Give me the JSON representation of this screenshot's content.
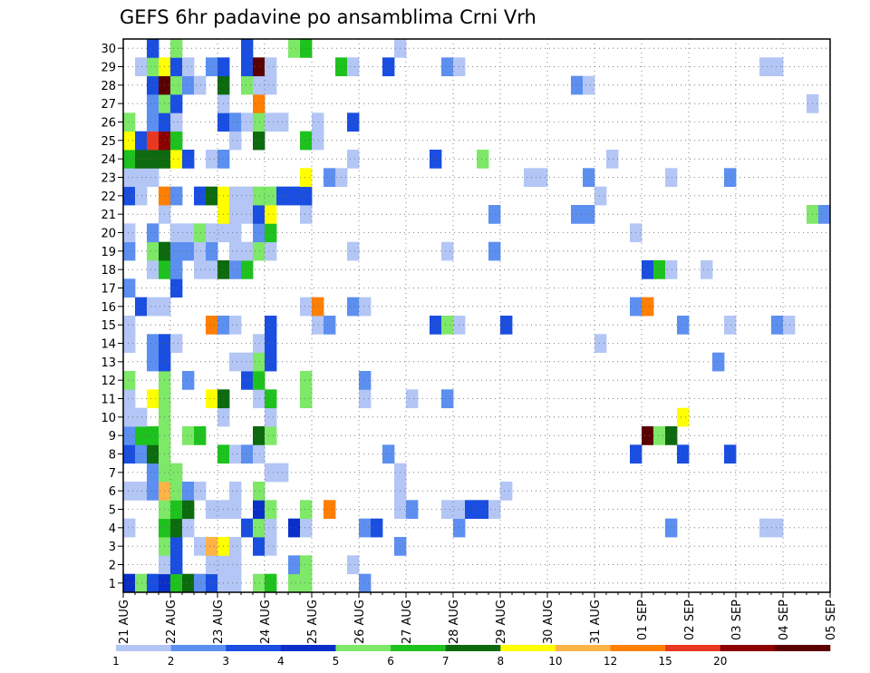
{
  "chart_data": {
    "type": "heatmap",
    "title": "GEFS 6hr padavine po ansamblima Crni Vrh",
    "xlabel": "",
    "ylabel": "",
    "y_ticks": [
      "1",
      "2",
      "3",
      "4",
      "5",
      "6",
      "7",
      "8",
      "9",
      "10",
      "11",
      "12",
      "13",
      "14",
      "15",
      "16",
      "17",
      "18",
      "19",
      "20",
      "21",
      "22",
      "23",
      "24",
      "25",
      "26",
      "27",
      "28",
      "29",
      "30"
    ],
    "x_ticks": [
      "21 AUG",
      "22 AUG",
      "23 AUG",
      "24 AUG",
      "25 AUG",
      "26 AUG",
      "27 AUG",
      "28 AUG",
      "29 AUG",
      "30 AUG",
      "31 AUG",
      "01 SEP",
      "02 SEP",
      "03 SEP",
      "04 SEP",
      "05 SEP"
    ],
    "x_range_steps": 60,
    "y_range": [
      0.5,
      30.5
    ],
    "grid": true,
    "legend_placement": "bottom",
    "legend_labels": [
      "1",
      "2",
      "3",
      "4",
      "5",
      "6",
      "7",
      "8",
      "10",
      "12",
      "15",
      "20"
    ],
    "legend_colors": [
      "#b3c6f5",
      "#5c8ff0",
      "#1a4ee0",
      "#0a2fc8",
      "#7ee868",
      "#1ec21e",
      "#0e6a0e",
      "#ffff00",
      "#ffb347",
      "#ff7f00",
      "#e83820",
      "#8b0000",
      "#5a0000"
    ],
    "cells": [
      [
        1,
        0,
        4
      ],
      [
        1,
        1,
        5
      ],
      [
        1,
        2,
        3
      ],
      [
        1,
        3,
        4
      ],
      [
        1,
        4,
        6
      ],
      [
        1,
        5,
        7
      ],
      [
        1,
        6,
        2
      ],
      [
        1,
        7,
        3
      ],
      [
        1,
        8,
        1
      ],
      [
        1,
        9,
        1
      ],
      [
        1,
        11,
        5
      ],
      [
        1,
        12,
        6
      ],
      [
        1,
        14,
        5
      ],
      [
        1,
        15,
        5
      ],
      [
        1,
        20,
        2
      ],
      [
        2,
        3,
        1
      ],
      [
        2,
        4,
        3
      ],
      [
        2,
        7,
        1
      ],
      [
        2,
        8,
        1
      ],
      [
        2,
        9,
        1
      ],
      [
        2,
        14,
        2
      ],
      [
        2,
        15,
        5
      ],
      [
        2,
        19,
        1
      ],
      [
        3,
        3,
        5
      ],
      [
        3,
        4,
        3
      ],
      [
        3,
        6,
        1
      ],
      [
        3,
        7,
        9
      ],
      [
        3,
        8,
        8
      ],
      [
        3,
        9,
        1
      ],
      [
        3,
        11,
        3
      ],
      [
        3,
        12,
        1
      ],
      [
        3,
        23,
        2
      ],
      [
        4,
        0,
        1
      ],
      [
        4,
        3,
        6
      ],
      [
        4,
        4,
        7
      ],
      [
        4,
        5,
        1
      ],
      [
        4,
        10,
        3
      ],
      [
        4,
        11,
        5
      ],
      [
        4,
        12,
        1
      ],
      [
        4,
        14,
        4
      ],
      [
        4,
        15,
        1
      ],
      [
        4,
        20,
        2
      ],
      [
        4,
        21,
        3
      ],
      [
        4,
        28,
        2
      ],
      [
        4,
        46,
        2
      ],
      [
        4,
        54,
        1
      ],
      [
        4,
        55,
        1
      ],
      [
        5,
        3,
        5
      ],
      [
        5,
        4,
        6
      ],
      [
        5,
        5,
        7
      ],
      [
        5,
        7,
        1
      ],
      [
        5,
        8,
        1
      ],
      [
        5,
        9,
        1
      ],
      [
        5,
        11,
        4
      ],
      [
        5,
        12,
        5
      ],
      [
        5,
        15,
        5
      ],
      [
        5,
        17,
        10
      ],
      [
        5,
        23,
        1
      ],
      [
        5,
        24,
        2
      ],
      [
        5,
        27,
        1
      ],
      [
        5,
        28,
        1
      ],
      [
        5,
        29,
        3
      ],
      [
        5,
        30,
        3
      ],
      [
        5,
        31,
        1
      ],
      [
        6,
        0,
        1
      ],
      [
        6,
        1,
        1
      ],
      [
        6,
        2,
        2
      ],
      [
        6,
        3,
        9
      ],
      [
        6,
        4,
        5
      ],
      [
        6,
        5,
        2
      ],
      [
        6,
        6,
        1
      ],
      [
        6,
        9,
        1
      ],
      [
        6,
        11,
        5
      ],
      [
        6,
        23,
        1
      ],
      [
        6,
        32,
        1
      ],
      [
        7,
        2,
        2
      ],
      [
        7,
        3,
        5
      ],
      [
        7,
        4,
        5
      ],
      [
        7,
        12,
        1
      ],
      [
        7,
        13,
        1
      ],
      [
        7,
        23,
        1
      ],
      [
        8,
        0,
        3
      ],
      [
        8,
        1,
        2
      ],
      [
        8,
        2,
        7
      ],
      [
        8,
        3,
        5
      ],
      [
        8,
        8,
        6
      ],
      [
        8,
        9,
        1
      ],
      [
        8,
        10,
        2
      ],
      [
        8,
        11,
        1
      ],
      [
        8,
        22,
        2
      ],
      [
        8,
        43,
        3
      ],
      [
        8,
        47,
        3
      ],
      [
        8,
        51,
        3
      ],
      [
        9,
        0,
        2
      ],
      [
        9,
        1,
        6
      ],
      [
        9,
        2,
        6
      ],
      [
        9,
        3,
        5
      ],
      [
        9,
        5,
        5
      ],
      [
        9,
        6,
        6
      ],
      [
        9,
        11,
        7
      ],
      [
        9,
        12,
        5
      ],
      [
        9,
        44,
        13
      ],
      [
        9,
        45,
        5
      ],
      [
        9,
        46,
        7
      ],
      [
        10,
        0,
        1
      ],
      [
        10,
        1,
        1
      ],
      [
        10,
        3,
        5
      ],
      [
        10,
        8,
        1
      ],
      [
        10,
        12,
        1
      ],
      [
        10,
        47,
        8
      ],
      [
        11,
        0,
        1
      ],
      [
        11,
        2,
        8
      ],
      [
        11,
        3,
        5
      ],
      [
        11,
        7,
        8
      ],
      [
        11,
        8,
        7
      ],
      [
        11,
        11,
        1
      ],
      [
        11,
        12,
        6
      ],
      [
        11,
        15,
        5
      ],
      [
        11,
        20,
        1
      ],
      [
        11,
        24,
        1
      ],
      [
        11,
        27,
        2
      ],
      [
        12,
        0,
        5
      ],
      [
        12,
        3,
        5
      ],
      [
        12,
        5,
        2
      ],
      [
        12,
        10,
        3
      ],
      [
        12,
        11,
        6
      ],
      [
        12,
        15,
        5
      ],
      [
        12,
        20,
        2
      ],
      [
        13,
        2,
        2
      ],
      [
        13,
        3,
        3
      ],
      [
        13,
        9,
        1
      ],
      [
        13,
        10,
        1
      ],
      [
        13,
        11,
        5
      ],
      [
        13,
        12,
        3
      ],
      [
        13,
        50,
        2
      ],
      [
        14,
        0,
        1
      ],
      [
        14,
        2,
        2
      ],
      [
        14,
        3,
        3
      ],
      [
        14,
        4,
        1
      ],
      [
        14,
        11,
        1
      ],
      [
        14,
        12,
        3
      ],
      [
        14,
        40,
        1
      ],
      [
        15,
        0,
        1
      ],
      [
        15,
        7,
        10
      ],
      [
        15,
        8,
        2
      ],
      [
        15,
        9,
        1
      ],
      [
        15,
        12,
        3
      ],
      [
        15,
        16,
        1
      ],
      [
        15,
        17,
        2
      ],
      [
        15,
        26,
        3
      ],
      [
        15,
        27,
        5
      ],
      [
        15,
        28,
        1
      ],
      [
        15,
        32,
        3
      ],
      [
        15,
        47,
        2
      ],
      [
        15,
        51,
        1
      ],
      [
        15,
        55,
        2
      ],
      [
        15,
        56,
        1
      ],
      [
        16,
        1,
        3
      ],
      [
        16,
        2,
        1
      ],
      [
        16,
        3,
        1
      ],
      [
        16,
        15,
        1
      ],
      [
        16,
        16,
        10
      ],
      [
        16,
        19,
        2
      ],
      [
        16,
        20,
        1
      ],
      [
        16,
        43,
        2
      ],
      [
        16,
        44,
        10
      ],
      [
        17,
        0,
        2
      ],
      [
        17,
        4,
        3
      ],
      [
        18,
        2,
        1
      ],
      [
        18,
        3,
        6
      ],
      [
        18,
        4,
        2
      ],
      [
        18,
        6,
        1
      ],
      [
        18,
        7,
        1
      ],
      [
        18,
        8,
        7
      ],
      [
        18,
        9,
        2
      ],
      [
        18,
        10,
        6
      ],
      [
        18,
        44,
        3
      ],
      [
        18,
        45,
        6
      ],
      [
        18,
        46,
        1
      ],
      [
        18,
        49,
        1
      ],
      [
        19,
        0,
        2
      ],
      [
        19,
        2,
        5
      ],
      [
        19,
        3,
        7
      ],
      [
        19,
        4,
        2
      ],
      [
        19,
        5,
        2
      ],
      [
        19,
        6,
        1
      ],
      [
        19,
        7,
        2
      ],
      [
        19,
        9,
        1
      ],
      [
        19,
        10,
        1
      ],
      [
        19,
        11,
        5
      ],
      [
        19,
        12,
        1
      ],
      [
        19,
        19,
        1
      ],
      [
        19,
        27,
        1
      ],
      [
        19,
        31,
        2
      ],
      [
        20,
        0,
        1
      ],
      [
        20,
        2,
        2
      ],
      [
        20,
        4,
        1
      ],
      [
        20,
        5,
        1
      ],
      [
        20,
        6,
        5
      ],
      [
        20,
        7,
        1
      ],
      [
        20,
        8,
        1
      ],
      [
        20,
        9,
        1
      ],
      [
        20,
        11,
        2
      ],
      [
        20,
        12,
        6
      ],
      [
        20,
        43,
        1
      ],
      [
        21,
        3,
        1
      ],
      [
        21,
        8,
        8
      ],
      [
        21,
        9,
        1
      ],
      [
        21,
        10,
        1
      ],
      [
        21,
        11,
        3
      ],
      [
        21,
        12,
        8
      ],
      [
        21,
        15,
        1
      ],
      [
        21,
        31,
        2
      ],
      [
        21,
        38,
        2
      ],
      [
        21,
        39,
        2
      ],
      [
        21,
        58,
        5
      ],
      [
        21,
        59,
        2
      ],
      [
        22,
        0,
        3
      ],
      [
        22,
        1,
        1
      ],
      [
        22,
        3,
        10
      ],
      [
        22,
        4,
        2
      ],
      [
        22,
        6,
        3
      ],
      [
        22,
        7,
        7
      ],
      [
        22,
        8,
        8
      ],
      [
        22,
        9,
        1
      ],
      [
        22,
        10,
        1
      ],
      [
        22,
        11,
        5
      ],
      [
        22,
        12,
        5
      ],
      [
        22,
        13,
        3
      ],
      [
        22,
        14,
        3
      ],
      [
        22,
        15,
        3
      ],
      [
        22,
        40,
        1
      ],
      [
        23,
        0,
        1
      ],
      [
        23,
        1,
        1
      ],
      [
        23,
        2,
        1
      ],
      [
        23,
        15,
        8
      ],
      [
        23,
        17,
        2
      ],
      [
        23,
        18,
        1
      ],
      [
        23,
        34,
        1
      ],
      [
        23,
        35,
        1
      ],
      [
        23,
        39,
        2
      ],
      [
        23,
        46,
        1
      ],
      [
        23,
        51,
        2
      ],
      [
        24,
        0,
        6
      ],
      [
        24,
        1,
        7
      ],
      [
        24,
        2,
        7
      ],
      [
        24,
        3,
        7
      ],
      [
        24,
        4,
        8
      ],
      [
        24,
        5,
        3
      ],
      [
        24,
        7,
        1
      ],
      [
        24,
        8,
        2
      ],
      [
        24,
        19,
        1
      ],
      [
        24,
        26,
        3
      ],
      [
        24,
        30,
        5
      ],
      [
        24,
        41,
        1
      ],
      [
        25,
        0,
        8
      ],
      [
        25,
        1,
        3
      ],
      [
        25,
        2,
        11
      ],
      [
        25,
        3,
        12
      ],
      [
        25,
        4,
        6
      ],
      [
        25,
        9,
        1
      ],
      [
        25,
        11,
        7
      ],
      [
        25,
        15,
        6
      ],
      [
        25,
        16,
        1
      ],
      [
        26,
        0,
        5
      ],
      [
        26,
        2,
        2
      ],
      [
        26,
        3,
        3
      ],
      [
        26,
        4,
        1
      ],
      [
        26,
        8,
        3
      ],
      [
        26,
        9,
        2
      ],
      [
        26,
        10,
        1
      ],
      [
        26,
        11,
        5
      ],
      [
        26,
        12,
        1
      ],
      [
        26,
        13,
        1
      ],
      [
        26,
        16,
        1
      ],
      [
        26,
        19,
        3
      ],
      [
        27,
        2,
        2
      ],
      [
        27,
        3,
        5
      ],
      [
        27,
        4,
        3
      ],
      [
        27,
        8,
        1
      ],
      [
        27,
        11,
        10
      ],
      [
        27,
        58,
        1
      ],
      [
        28,
        2,
        3
      ],
      [
        28,
        3,
        13
      ],
      [
        28,
        4,
        5
      ],
      [
        28,
        5,
        2
      ],
      [
        28,
        6,
        1
      ],
      [
        28,
        8,
        7
      ],
      [
        28,
        10,
        5
      ],
      [
        28,
        11,
        1
      ],
      [
        28,
        12,
        1
      ],
      [
        28,
        38,
        2
      ],
      [
        28,
        39,
        1
      ],
      [
        29,
        1,
        1
      ],
      [
        29,
        2,
        5
      ],
      [
        29,
        3,
        8
      ],
      [
        29,
        4,
        3
      ],
      [
        29,
        5,
        1
      ],
      [
        29,
        7,
        2
      ],
      [
        29,
        8,
        3
      ],
      [
        29,
        10,
        3
      ],
      [
        29,
        11,
        13
      ],
      [
        29,
        12,
        1
      ],
      [
        29,
        18,
        6
      ],
      [
        29,
        19,
        1
      ],
      [
        29,
        22,
        3
      ],
      [
        29,
        27,
        2
      ],
      [
        29,
        28,
        1
      ],
      [
        29,
        54,
        1
      ],
      [
        29,
        55,
        1
      ],
      [
        30,
        2,
        3
      ],
      [
        30,
        4,
        5
      ],
      [
        30,
        10,
        3
      ],
      [
        30,
        14,
        5
      ],
      [
        30,
        15,
        6
      ],
      [
        30,
        23,
        1
      ]
    ]
  }
}
